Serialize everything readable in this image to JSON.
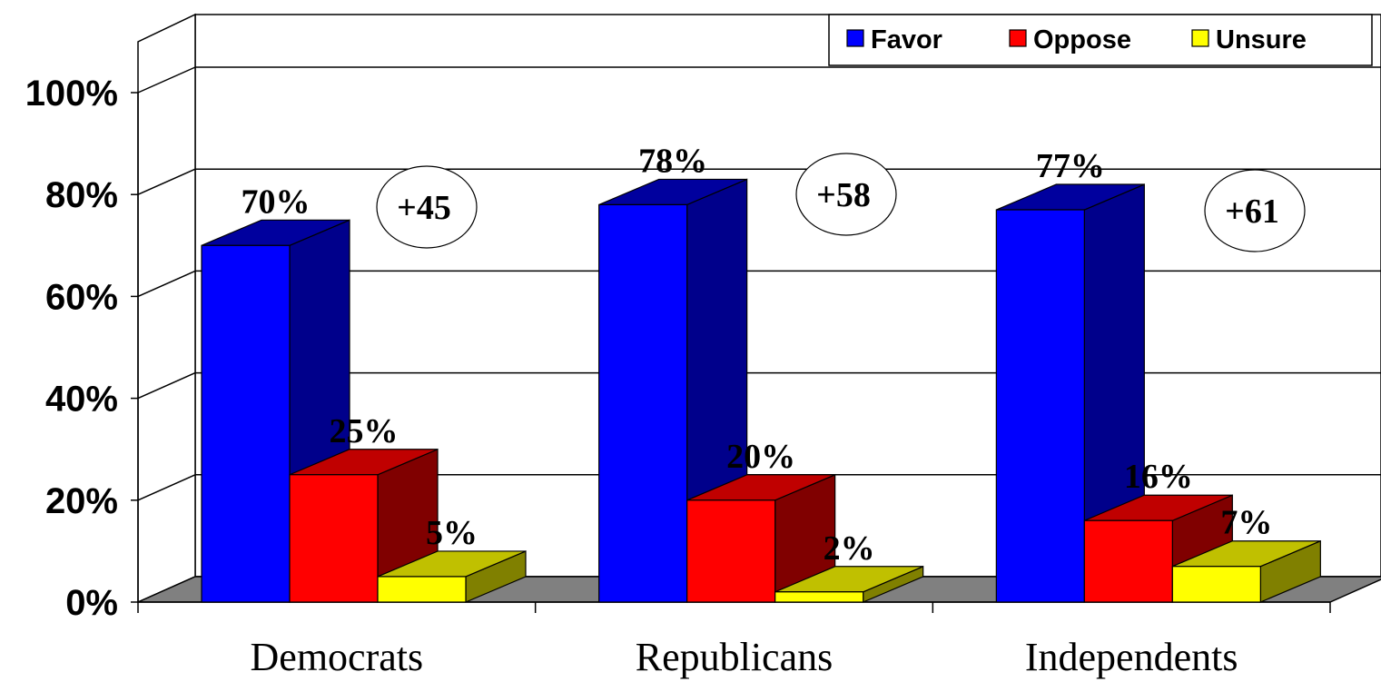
{
  "chart_data": {
    "type": "bar",
    "categories": [
      "Democrats",
      "Republicans",
      "Independents"
    ],
    "series": [
      {
        "name": "Favor",
        "values": [
          70,
          78,
          77
        ],
        "labels": [
          "70%",
          "78%",
          "77%"
        ]
      },
      {
        "name": "Oppose",
        "values": [
          25,
          20,
          16
        ],
        "labels": [
          "25%",
          "20%",
          "16%"
        ]
      },
      {
        "name": "Unsure",
        "values": [
          5,
          2,
          7
        ],
        "labels": [
          "5%",
          "2%",
          "7%"
        ]
      }
    ],
    "net_labels": [
      "+45",
      "+58",
      "+61"
    ],
    "ylim": [
      0,
      100
    ],
    "yticks": [
      "0%",
      "20%",
      "40%",
      "60%",
      "80%",
      "100%"
    ],
    "grid": true,
    "legend": "top-right",
    "three_d": true,
    "colors": {
      "Favor": {
        "front": "#0000ff",
        "side": "#00008b",
        "top": "#00009e"
      },
      "Oppose": {
        "front": "#ff0000",
        "side": "#800000",
        "top": "#c00000"
      },
      "Unsure": {
        "front": "#ffff00",
        "side": "#808000",
        "top": "#c0c000"
      },
      "floor": "#808080"
    }
  }
}
